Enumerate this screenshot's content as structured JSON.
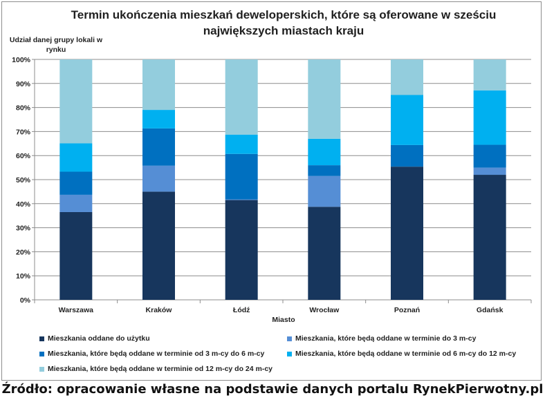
{
  "chart_data": {
    "type": "bar",
    "stacked": true,
    "title": "Termin ukończenia mieszkań deweloperskich, które są oferowane w sześciu największych miastach kraju",
    "ylabel": "Udział danej grupy lokali w rynku",
    "xlabel": "Miasto",
    "ylim": [
      0,
      100
    ],
    "yticks": [
      "0%",
      "10%",
      "20%",
      "30%",
      "40%",
      "50%",
      "60%",
      "70%",
      "80%",
      "90%",
      "100%"
    ],
    "categories": [
      "Warszawa",
      "Kraków",
      "Łódź",
      "Wrocław",
      "Poznań",
      "Gdańsk"
    ],
    "series": [
      {
        "name": "Mieszkania oddane do użytku",
        "color": "#17365d",
        "values": [
          36.5,
          45.0,
          41.5,
          38.7,
          55.4,
          52.0
        ]
      },
      {
        "name": "Mieszkania, które będą oddane w terminie do 3 m-cy",
        "color": "#558ed5",
        "values": [
          7.2,
          10.8,
          0.3,
          12.8,
          0.0,
          3.0
        ]
      },
      {
        "name": "Mieszkania, które będą oddane w terminie od 3 m-cy do 6 m-cy",
        "color": "#0070c0",
        "values": [
          9.6,
          15.5,
          18.9,
          4.5,
          9.0,
          9.5
        ]
      },
      {
        "name": "Mieszkania, które będą oddane w terminie od 6 m-cy do 12 m-cy",
        "color": "#00b0f0",
        "values": [
          11.8,
          7.7,
          8.0,
          11.0,
          20.8,
          22.6
        ]
      },
      {
        "name": "Mieszkania, które będą oddane w terminie od 12 m-cy do 24 m-cy",
        "color": "#93cddd",
        "values": [
          34.9,
          21.0,
          31.3,
          33.0,
          14.8,
          12.9
        ]
      }
    ],
    "grid": true,
    "legend_position": "bottom"
  },
  "source_text": "Źródło: opracowanie własne na podstawie danych portalu RynekPierwotny.pl"
}
